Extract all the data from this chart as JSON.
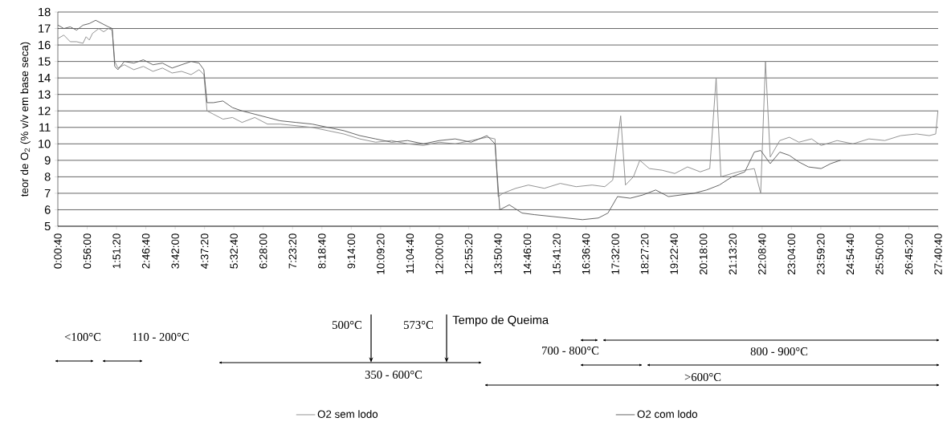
{
  "chart_data": {
    "type": "line",
    "ylabel": "teor de O$_{2}$ (% v/v em base seca)",
    "xlim": [
      0.0111,
      27.6778
    ],
    "xticks": [
      {
        "value": 0.0111,
        "label": "0:00:40"
      },
      {
        "value": 0.9333,
        "label": "0:56:00"
      },
      {
        "value": 1.8556,
        "label": "1:51:20"
      },
      {
        "value": 2.7778,
        "label": "2:46:40"
      },
      {
        "value": 3.7,
        "label": "3:42:00"
      },
      {
        "value": 4.6222,
        "label": "4:37:20"
      },
      {
        "value": 5.5444,
        "label": "5:32:40"
      },
      {
        "value": 6.4667,
        "label": "6:28:00"
      },
      {
        "value": 7.3889,
        "label": "7:23:20"
      },
      {
        "value": 8.3111,
        "label": "8:18:40"
      },
      {
        "value": 9.2333,
        "label": "9:14:00"
      },
      {
        "value": 10.1556,
        "label": "10:09:20"
      },
      {
        "value": 11.0778,
        "label": "11:04:40"
      },
      {
        "value": 12.0,
        "label": "12:00:00"
      },
      {
        "value": 12.9222,
        "label": "12:55:20"
      },
      {
        "value": 13.8444,
        "label": "13:50:40"
      },
      {
        "value": 14.7667,
        "label": "14:46:00"
      },
      {
        "value": 15.6889,
        "label": "15:41:20"
      },
      {
        "value": 16.6111,
        "label": "16:36:40"
      },
      {
        "value": 17.5333,
        "label": "17:32:00"
      },
      {
        "value": 18.4556,
        "label": "18:27:20"
      },
      {
        "value": 19.3778,
        "label": "19:22:40"
      },
      {
        "value": 20.3,
        "label": "20:18:00"
      },
      {
        "value": 21.2222,
        "label": "21:13:20"
      },
      {
        "value": 22.1444,
        "label": "22:08:40"
      },
      {
        "value": 23.0667,
        "label": "23:04:00"
      },
      {
        "value": 23.9889,
        "label": "23:59:20"
      },
      {
        "value": 24.9111,
        "label": "24:54:40"
      },
      {
        "value": 25.8333,
        "label": "25:50:00"
      },
      {
        "value": 26.7556,
        "label": "26:45:20"
      },
      {
        "value": 27.6778,
        "label": "27:40:40"
      }
    ],
    "ylim": [
      5,
      18
    ],
    "yticks": [
      5,
      6,
      7,
      8,
      9,
      10,
      11,
      12,
      13,
      14,
      15,
      16,
      17,
      18
    ],
    "grid": "y",
    "legend": "bottom",
    "marker": "none",
    "line_style": "solid",
    "series": [
      {
        "name": "O2 sem lodo",
        "color": "#8c8c8c",
        "x": [
          0.02,
          0.2,
          0.4,
          0.6,
          0.8,
          0.9,
          1.0,
          1.1,
          1.3,
          1.45,
          1.6,
          1.72,
          1.8,
          1.9,
          2.1,
          2.4,
          2.7,
          3.0,
          3.3,
          3.6,
          3.9,
          4.2,
          4.45,
          4.6,
          4.7,
          4.9,
          5.2,
          5.5,
          5.8,
          6.2,
          6.6,
          7.0,
          7.5,
          8.0,
          8.5,
          9.0,
          9.5,
          10.0,
          10.5,
          11.0,
          11.5,
          12.0,
          12.5,
          13.0,
          13.5,
          13.75,
          13.85,
          14.0,
          14.4,
          14.8,
          15.3,
          15.8,
          16.3,
          16.8,
          17.2,
          17.45,
          17.7,
          17.85,
          18.1,
          18.3,
          18.6,
          19.0,
          19.4,
          19.8,
          20.2,
          20.5,
          20.7,
          20.85,
          21.2,
          21.6,
          21.9,
          22.1,
          22.25,
          22.4,
          22.7,
          23.0,
          23.3,
          23.7,
          24.0,
          24.5,
          25.0,
          25.5,
          26.0,
          26.5,
          27.0,
          27.4,
          27.6,
          27.67
        ],
        "values": [
          16.4,
          16.6,
          16.2,
          16.2,
          16.1,
          16.5,
          16.3,
          16.7,
          17.0,
          16.8,
          17.0,
          16.9,
          15.0,
          14.6,
          14.8,
          14.5,
          14.7,
          14.4,
          14.6,
          14.3,
          14.4,
          14.2,
          14.5,
          14.2,
          12.0,
          11.8,
          11.5,
          11.6,
          11.3,
          11.6,
          11.2,
          11.2,
          11.1,
          11.0,
          10.8,
          10.6,
          10.3,
          10.1,
          10.2,
          10.0,
          9.9,
          10.1,
          10.0,
          10.2,
          10.4,
          10.3,
          6.8,
          7.0,
          7.3,
          7.5,
          7.3,
          7.6,
          7.4,
          7.5,
          7.4,
          7.8,
          11.7,
          7.5,
          8.0,
          9.0,
          8.5,
          8.4,
          8.2,
          8.6,
          8.3,
          8.5,
          14.0,
          8.0,
          8.2,
          8.4,
          8.5,
          7.0,
          15.0,
          9.2,
          10.2,
          10.4,
          10.1,
          10.3,
          9.9,
          10.2,
          10.0,
          10.3,
          10.2,
          10.5,
          10.6,
          10.5,
          10.6,
          12.0
        ]
      },
      {
        "name": "O2 com lodo",
        "color": "#5a5a5a",
        "x": [
          0.02,
          0.2,
          0.4,
          0.6,
          0.8,
          1.0,
          1.2,
          1.4,
          1.6,
          1.72,
          1.8,
          1.9,
          2.1,
          2.4,
          2.7,
          3.0,
          3.3,
          3.6,
          3.9,
          4.2,
          4.45,
          4.6,
          4.7,
          4.9,
          5.2,
          5.5,
          5.8,
          6.2,
          6.6,
          7.0,
          7.5,
          8.0,
          8.5,
          9.0,
          9.5,
          10.0,
          10.5,
          11.0,
          11.5,
          12.0,
          12.5,
          13.0,
          13.5,
          13.75,
          13.9,
          14.2,
          14.6,
          15.0,
          15.5,
          16.0,
          16.5,
          17.0,
          17.3,
          17.6,
          18.0,
          18.4,
          18.8,
          19.2,
          19.6,
          20.0,
          20.4,
          20.8,
          21.2,
          21.6,
          21.9,
          22.1,
          22.4,
          22.7,
          23.0,
          23.3,
          23.6,
          24.0,
          24.3,
          24.6
        ],
        "values": [
          17.2,
          17.0,
          17.1,
          16.9,
          17.2,
          17.3,
          17.5,
          17.3,
          17.1,
          17.0,
          14.7,
          14.5,
          15.0,
          14.9,
          15.1,
          14.8,
          14.9,
          14.6,
          14.8,
          15.0,
          14.9,
          14.5,
          12.5,
          12.5,
          12.6,
          12.2,
          12.0,
          11.8,
          11.6,
          11.4,
          11.3,
          11.2,
          11.0,
          10.8,
          10.5,
          10.3,
          10.1,
          10.2,
          10.0,
          10.2,
          10.3,
          10.1,
          10.5,
          10.0,
          6.0,
          6.3,
          5.8,
          5.7,
          5.6,
          5.5,
          5.4,
          5.5,
          5.8,
          6.8,
          6.7,
          6.9,
          7.2,
          6.8,
          6.9,
          7.0,
          7.2,
          7.5,
          8.0,
          8.3,
          9.5,
          9.6,
          8.8,
          9.5,
          9.3,
          8.9,
          8.6,
          8.5,
          8.8,
          9.0
        ]
      }
    ],
    "annotations": [
      "<100°C",
      "110 - 200°C",
      "500°C",
      "573°C",
      "Tempo de Queima",
      "350 - 600°C",
      "700 - 800°C",
      "800 - 900°C",
      ">600°C"
    ]
  }
}
